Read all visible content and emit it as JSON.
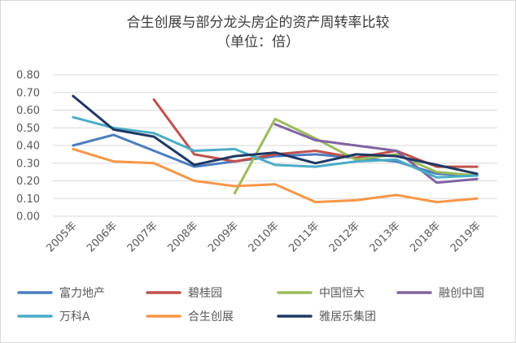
{
  "chart_data": {
    "type": "line",
    "title": "合生创展与部分龙头房企的资产周转率比较",
    "subtitle": "（单位：倍）",
    "xlabel": "",
    "ylabel": "",
    "categories": [
      "2005年",
      "2006年",
      "2007年",
      "2008年",
      "2009年",
      "2010年",
      "2011年",
      "2012年",
      "2013年",
      "2018年",
      "2019年"
    ],
    "ylim": [
      0,
      0.8
    ],
    "yticks": [
      "0.00",
      "0.10",
      "0.20",
      "0.30",
      "0.40",
      "0.50",
      "0.60",
      "0.70",
      "0.80"
    ],
    "grid": true,
    "legend": "bottom",
    "series": [
      {
        "name": "富力地产",
        "color": "#4a7dbf",
        "values": [
          0.4,
          0.46,
          0.37,
          0.28,
          0.31,
          0.34,
          0.35,
          0.33,
          0.31,
          0.24,
          0.23
        ]
      },
      {
        "name": "碧桂园",
        "color": "#c0504d",
        "values": [
          null,
          null,
          0.66,
          0.35,
          0.31,
          0.35,
          0.37,
          0.33,
          0.37,
          0.28,
          0.28
        ]
      },
      {
        "name": "中国恒大",
        "color": "#9bbb59",
        "values": [
          null,
          null,
          null,
          null,
          0.13,
          0.55,
          0.44,
          0.32,
          0.35,
          0.25,
          0.23
        ]
      },
      {
        "name": "融创中国",
        "color": "#8064a2",
        "values": [
          null,
          null,
          null,
          null,
          null,
          0.52,
          0.43,
          0.4,
          0.37,
          0.19,
          0.21
        ]
      },
      {
        "name": "万科A",
        "color": "#4bacc6",
        "values": [
          0.56,
          0.5,
          0.47,
          0.37,
          0.38,
          0.29,
          0.28,
          0.31,
          0.32,
          0.22,
          0.23
        ]
      },
      {
        "name": "合生创展",
        "color": "#f79646",
        "values": [
          0.38,
          0.31,
          0.3,
          0.2,
          0.17,
          0.18,
          0.08,
          0.09,
          0.12,
          0.08,
          0.1
        ]
      },
      {
        "name": "雅居乐集团",
        "color": "#1f3864",
        "values": [
          0.68,
          0.49,
          0.45,
          0.29,
          0.34,
          0.36,
          0.3,
          0.35,
          0.34,
          0.29,
          0.24
        ]
      }
    ]
  }
}
